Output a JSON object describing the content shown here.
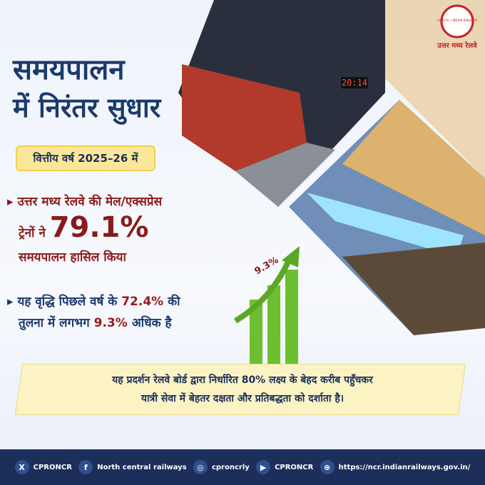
{
  "logo": {
    "ring": "भारतीय रेल • INDIAN RAILWAYS",
    "caption": "उत्तर मध्य रेलवे"
  },
  "header": {
    "title_line1": "समयपालन",
    "title_line2": "में निरंतर सुधार",
    "badge": "वित्तीय वर्ष 2025–26 में"
  },
  "photo": {
    "clock": "20:14"
  },
  "bullets": [
    {
      "line1": "उत्तर मध्य रेलवे की मेल/एक्सप्रेस",
      "line2_prefix": "ट्रेनों ने",
      "highlight": "79.1%",
      "line3": "समयपालन हासिल किया"
    },
    {
      "line1_prefix": "यह वृद्धि पिछले वर्ष के",
      "line1_value": "72.4%",
      "line1_suffix": "की",
      "line2_prefix": "तुलना में लगभग",
      "line2_value": "9.3%",
      "line2_suffix": "अधिक है"
    }
  ],
  "growth_label": "9.3%",
  "footer_note": {
    "line1": "यह प्रदर्शन रेलवे बोर्ड द्वारा निर्धारित 80% लक्ष्य के बेहद करीब पहुँचकर",
    "line2": "यात्री सेवा में बेहतर दक्षता और प्रतिबद्धता को दर्शाता है।"
  },
  "social": [
    {
      "icon": "X",
      "handle": "CPRONCR"
    },
    {
      "icon": "f",
      "handle": "North central railways"
    },
    {
      "icon": "◎",
      "handle": "cproncrly"
    },
    {
      "icon": "▶",
      "handle": "CPRONCR"
    },
    {
      "icon": "⊕",
      "handle": "https://ncr.indianrailways.gov.in/"
    }
  ]
}
